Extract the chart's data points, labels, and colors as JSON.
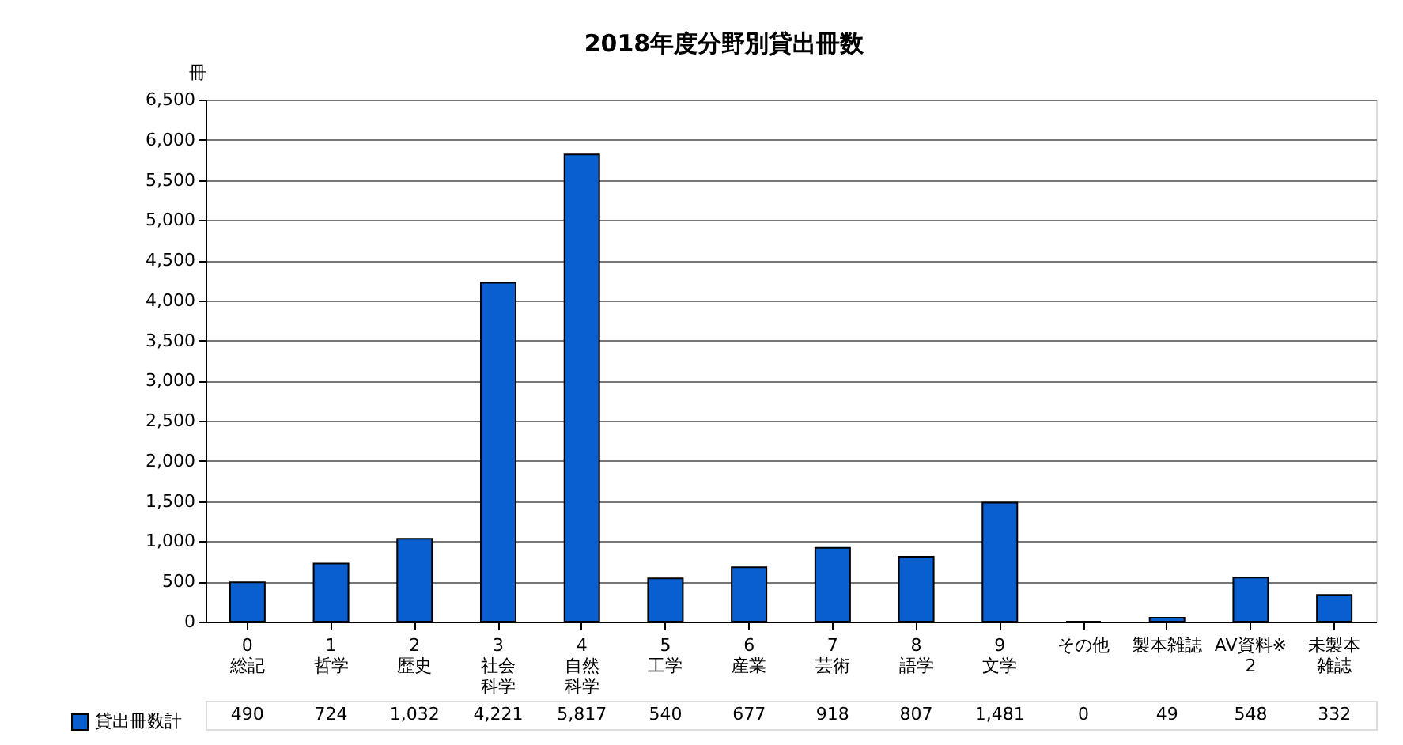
{
  "chart_data": {
    "type": "bar",
    "title": "2018年度分野別貸出冊数",
    "ylabel": "冊",
    "categories": [
      "0\n総記",
      "1\n哲学",
      "2\n歴史",
      "3\n社会科学",
      "4\n自然科学",
      "5\n工学",
      "6\n産業",
      "7\n芸術",
      "8\n語学",
      "9\n文学",
      "その他",
      "製本雑誌",
      "AV資料※\n2",
      "未製本雑誌"
    ],
    "series": [
      {
        "name": "貸出冊数計",
        "color": "#0a5fd0",
        "values": [
          490,
          724,
          1032,
          4221,
          5817,
          540,
          677,
          918,
          807,
          1481,
          0,
          49,
          548,
          332
        ],
        "value_labels": [
          "490",
          "724",
          "1,032",
          "4,221",
          "5,817",
          "540",
          "677",
          "918",
          "807",
          "1,481",
          "0",
          "49",
          "548",
          "332"
        ]
      }
    ],
    "ylim": [
      0,
      6500
    ],
    "yticks": [
      0,
      {
        "value": 500,
        "label": "500"
      },
      {
        "value": 1000,
        "label": "1,000"
      },
      {
        "value": 1500,
        "label": "1,500"
      },
      {
        "value": 2000,
        "label": "2,000"
      },
      {
        "value": 2500,
        "label": "2,500"
      },
      {
        "value": 3000,
        "label": "3,000"
      },
      {
        "value": 3500,
        "label": "3,500"
      },
      {
        "value": 4000,
        "label": "4,000"
      },
      {
        "value": 4500,
        "label": "4,500"
      },
      {
        "value": 5000,
        "label": "5,000"
      },
      {
        "value": 5500,
        "label": "5,500"
      },
      {
        "value": 6000,
        "label": "6,000"
      },
      {
        "value": 6500,
        "label": "6,500"
      }
    ],
    "grid": "y",
    "legend": "bottom left"
  }
}
